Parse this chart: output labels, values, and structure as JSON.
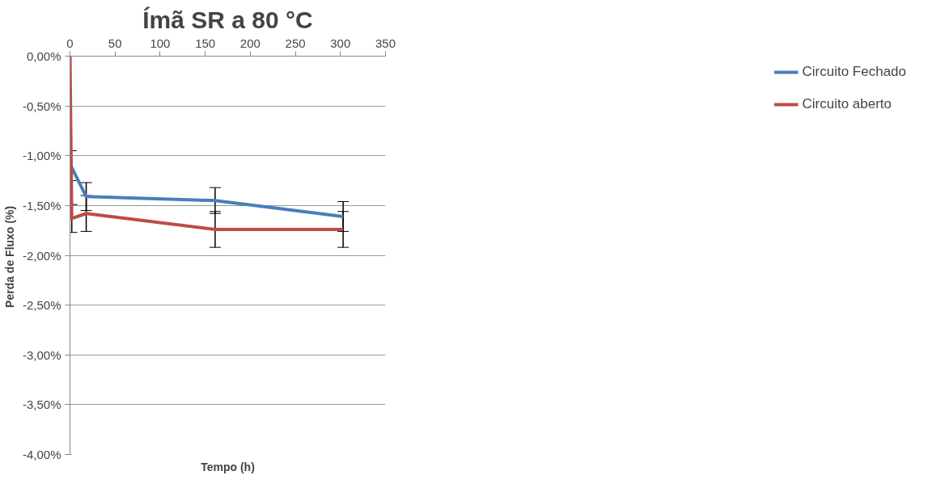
{
  "chart_data": {
    "type": "line",
    "title": "Ímã SR a 80 °C",
    "xlabel": "Tempo (h)",
    "ylabel": "Perda de Fluxo  (%)",
    "xlim": [
      0,
      350
    ],
    "xticks": [
      0,
      50,
      100,
      150,
      200,
      250,
      300,
      350
    ],
    "ylim": [
      -4,
      0
    ],
    "yticks": [
      {
        "value": 0,
        "label": "0,00%"
      },
      {
        "value": -0.5,
        "label": "-0,50%"
      },
      {
        "value": -1,
        "label": "-1,00%"
      },
      {
        "value": -1.5,
        "label": "-1,50%"
      },
      {
        "value": -2,
        "label": "-2,00%"
      },
      {
        "value": -2.5,
        "label": "-2,50%"
      },
      {
        "value": -3,
        "label": "-3,00%"
      },
      {
        "value": -3.5,
        "label": "-3,50%"
      },
      {
        "value": -4,
        "label": "-4,00%"
      }
    ],
    "grid": "y",
    "legend": "right",
    "line_style": "solid",
    "marker": "none",
    "series": [
      {
        "name": "Circuito Fechado",
        "color": "#4a7ebb",
        "x": [
          1,
          18,
          161,
          303
        ],
        "values": [
          -1.1,
          -1.41,
          -1.45,
          -1.61
        ],
        "errors": [
          0.15,
          0.14,
          0.13,
          0.15
        ]
      },
      {
        "name": "Circuito aberto",
        "color": "#be4b48",
        "x": [
          0,
          2,
          18,
          161,
          303
        ],
        "values": [
          0,
          -1.63,
          -1.58,
          -1.74,
          -1.74
        ],
        "errors": [
          null,
          0.14,
          0.18,
          0.18,
          0.18
        ]
      }
    ]
  }
}
